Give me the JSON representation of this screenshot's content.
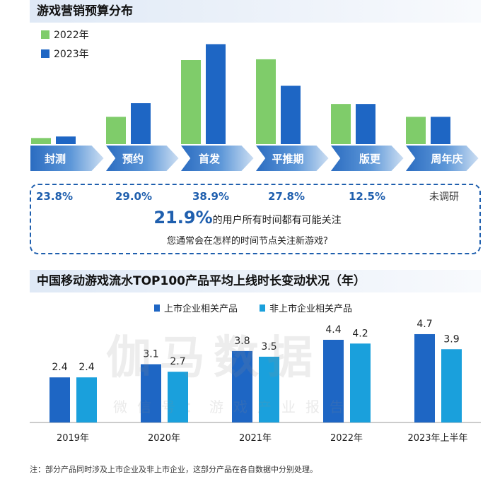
{
  "top_chart": {
    "title": "游戏营销预算分布",
    "legend": [
      {
        "label": "2022年",
        "color": "#7fcc6a"
      },
      {
        "label": "2023年",
        "color": "#1e66c4"
      }
    ],
    "stages": [
      "封测",
      "预约",
      "首发",
      "平推期",
      "版更",
      "周年庆"
    ],
    "percents": [
      "23.8%",
      "29.0%",
      "38.9%",
      "27.8%",
      "12.5%",
      "未调研"
    ]
  },
  "callout": {
    "highlight": "21.9%",
    "main_text": "的用户所有时间都有可能关注",
    "sub_text": "您通常会在怎样的时间节点关注新游戏?"
  },
  "bottom_chart": {
    "title": "中国移动游戏流水TOP100产品平均上线时长变动状况（年）",
    "legend": [
      {
        "label": "上市企业相关产品",
        "color": "#1e66c4"
      },
      {
        "label": "非上市企业相关产品",
        "color": "#1aa0dc"
      }
    ]
  },
  "watermark": {
    "main": "伽马数据",
    "sub": "微信号：游戏产业报告"
  },
  "note": "注：部分产品同时涉及上市企业及非上市企业，这部分产品在各自数据中分别处理。",
  "chart_data": [
    {
      "type": "bar",
      "title": "游戏营销预算分布",
      "categories": [
        "封测",
        "预约",
        "首发",
        "平推期",
        "版更",
        "周年庆"
      ],
      "series": [
        {
          "name": "2022年",
          "values": [
            0.9,
            3.7,
            11.2,
            11.3,
            5.4,
            3.7
          ]
        },
        {
          "name": "2023年",
          "values": [
            1.1,
            5.5,
            13.3,
            7.8,
            5.4,
            3.7
          ]
        }
      ],
      "ylim": [
        0,
        14
      ],
      "legend": "top-left",
      "grid": false
    },
    {
      "type": "bar",
      "title": "中国移动游戏流水TOP100产品平均上线时长变动状况（年）",
      "categories": [
        "2019年",
        "2020年",
        "2021年",
        "2022年",
        "2023年上半年"
      ],
      "series": [
        {
          "name": "上市企业相关产品",
          "values": [
            2.4,
            3.1,
            3.8,
            4.4,
            4.7
          ]
        },
        {
          "name": "非上市企业相关产品",
          "values": [
            2.4,
            2.7,
            3.5,
            4.2,
            3.9
          ]
        }
      ],
      "ylim": [
        0,
        5.3
      ],
      "legend": "top-center",
      "grid": false
    }
  ]
}
